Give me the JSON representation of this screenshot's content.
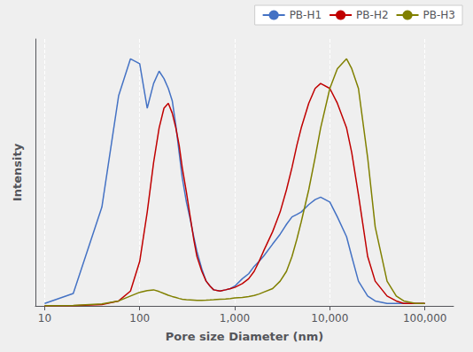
{
  "chart_data": {
    "type": "line",
    "xlabel": "Pore size Diameter (nm)",
    "ylabel": "Intensity",
    "log": "x",
    "grid": true,
    "legend": "upper right",
    "tick_labels": "x",
    "xlim": [
      8,
      200000
    ],
    "xticks": [
      10,
      100,
      {
        "value": 1000,
        "label": "1,000"
      },
      {
        "value": 10000,
        "label": "10,000"
      },
      {
        "value": 100000,
        "label": "100,000"
      }
    ],
    "ylim": [
      0,
      1.08
    ],
    "yticks": [],
    "x": [
      100000,
      80000,
      60000,
      50000,
      40000,
      30000,
      25000,
      20000,
      17000,
      15000,
      12000,
      10000,
      8000,
      7000,
      6000,
      5000,
      4500,
      4000,
      3500,
      3000,
      2500,
      2000,
      1800,
      1600,
      1400,
      1200,
      1000,
      900,
      800,
      700,
      600,
      550,
      500,
      450,
      400,
      370,
      340,
      310,
      280,
      260,
      240,
      220,
      200,
      180,
      160,
      140,
      120,
      100,
      80,
      60,
      40,
      20,
      10
    ],
    "series": [
      {
        "name": "PB-H1",
        "color": "#4472C4",
        "values": [
          0.01,
          0.01,
          0.01,
          0.01,
          0.01,
          0.02,
          0.04,
          0.1,
          0.2,
          0.28,
          0.36,
          0.42,
          0.44,
          0.43,
          0.41,
          0.38,
          0.37,
          0.36,
          0.33,
          0.29,
          0.25,
          0.2,
          0.18,
          0.16,
          0.13,
          0.11,
          0.08,
          0.07,
          0.065,
          0.06,
          0.065,
          0.08,
          0.1,
          0.15,
          0.22,
          0.28,
          0.35,
          0.42,
          0.52,
          0.62,
          0.73,
          0.83,
          0.88,
          0.92,
          0.95,
          0.9,
          0.8,
          0.98,
          1.0,
          0.85,
          0.4,
          0.05,
          0.01
        ]
      },
      {
        "name": "PB-H2",
        "color": "#C00000",
        "values": [
          0.01,
          0.01,
          0.01,
          0.02,
          0.04,
          0.1,
          0.2,
          0.45,
          0.62,
          0.72,
          0.82,
          0.88,
          0.9,
          0.88,
          0.82,
          0.72,
          0.65,
          0.56,
          0.47,
          0.38,
          0.3,
          0.22,
          0.18,
          0.14,
          0.11,
          0.09,
          0.075,
          0.07,
          0.065,
          0.06,
          0.065,
          0.08,
          0.1,
          0.14,
          0.2,
          0.27,
          0.36,
          0.46,
          0.56,
          0.65,
          0.72,
          0.78,
          0.82,
          0.8,
          0.72,
          0.58,
          0.38,
          0.18,
          0.06,
          0.02,
          0.005,
          0.001,
          0.001
        ]
      },
      {
        "name": "PB-H3",
        "color": "#808000",
        "values": [
          0.01,
          0.01,
          0.02,
          0.04,
          0.1,
          0.32,
          0.6,
          0.88,
          0.96,
          1.0,
          0.96,
          0.88,
          0.72,
          0.6,
          0.47,
          0.34,
          0.27,
          0.2,
          0.14,
          0.1,
          0.07,
          0.055,
          0.048,
          0.042,
          0.038,
          0.034,
          0.032,
          0.03,
          0.028,
          0.027,
          0.025,
          0.024,
          0.023,
          0.022,
          0.022,
          0.023,
          0.024,
          0.025,
          0.027,
          0.03,
          0.034,
          0.038,
          0.043,
          0.05,
          0.058,
          0.065,
          0.062,
          0.055,
          0.04,
          0.02,
          0.008,
          0.002,
          0.001
        ]
      }
    ]
  }
}
